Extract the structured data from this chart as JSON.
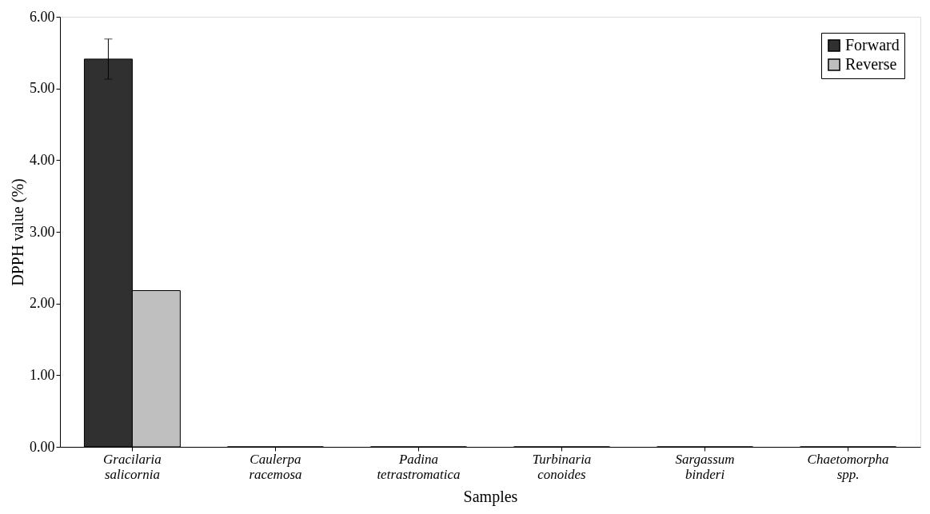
{
  "chart_data": {
    "type": "bar",
    "xlabel": "Samples",
    "ylabel": "DPPH value (%)",
    "categories": [
      "Gracilaria salicornia",
      "Caulerpa racemosa",
      "Padina tetrastromatica",
      "Turbinaria conoides",
      "Sargassum binderi",
      "Chaetomorpha spp."
    ],
    "series": [
      {
        "name": "Forward",
        "color": "#303030",
        "values": [
          5.41,
          0,
          0,
          0,
          0,
          0
        ],
        "errors": [
          0.28,
          null,
          null,
          null,
          null,
          null
        ]
      },
      {
        "name": "Reverse",
        "color": "#bfbfbf",
        "values": [
          2.18,
          0,
          0,
          0,
          0,
          0
        ]
      }
    ],
    "ylim": [
      0,
      6
    ],
    "yticks": [
      {
        "value": 0,
        "label": "0.00"
      },
      {
        "value": 1,
        "label": "1.00"
      },
      {
        "value": 2,
        "label": "2.00"
      },
      {
        "value": 3,
        "label": "3.00"
      },
      {
        "value": 4,
        "label": "4.00"
      },
      {
        "value": 5,
        "label": "5.00"
      },
      {
        "value": 6,
        "label": "6.00"
      }
    ],
    "grid": false,
    "legend": "top right"
  }
}
